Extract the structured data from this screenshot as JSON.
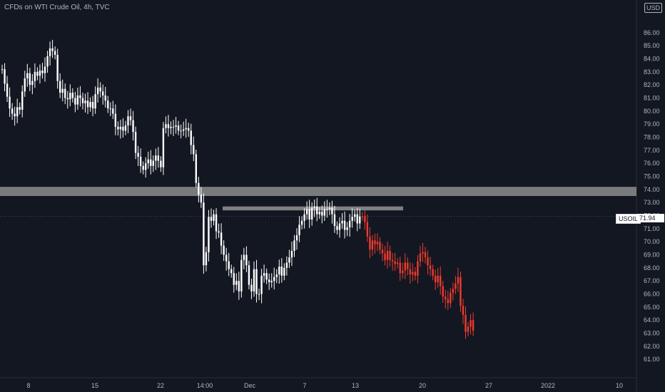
{
  "header": {
    "title": "CFDs on WTI Crude Oil, 4h, TVC",
    "currency": "USD"
  },
  "price_label": {
    "symbol": "USOIL",
    "value": "71.94"
  },
  "colors": {
    "background": "#131722",
    "up": "#ffffff",
    "down": "#ffffff",
    "projection": "#ef3b2c",
    "zone": "#8c8c8c",
    "text": "#b2b5be"
  },
  "chart_data": {
    "type": "candlestick",
    "title": "CFDs on WTI Crude Oil, 4h, TVC",
    "y_axis": {
      "ticks": [
        61.0,
        62.0,
        63.0,
        64.0,
        65.0,
        66.0,
        67.0,
        68.0,
        69.0,
        70.0,
        71.0,
        72.0,
        73.0,
        74.0,
        75.0,
        76.0,
        77.0,
        78.0,
        79.0,
        80.0,
        81.0,
        82.0,
        83.0,
        84.0,
        85.0,
        86.0
      ],
      "range": [
        60.3,
        87.3
      ],
      "position": "right"
    },
    "x_axis": {
      "tick_labels": [
        "8",
        "15",
        "22",
        "14:00",
        "Dec",
        "7",
        "13",
        "20",
        "27",
        "2022",
        "10"
      ]
    },
    "series": [
      {
        "kind": "historical",
        "color": "#ffffff",
        "closes": [
          83.2,
          82.1,
          81.1,
          80.2,
          79.8,
          79.6,
          80.3,
          80.1,
          81.5,
          82.5,
          82.9,
          82.0,
          82.3,
          83.0,
          82.7,
          83.1,
          82.9,
          83.4,
          84.2,
          84.8,
          84.6,
          84.3,
          82.3,
          81.4,
          81.7,
          81.0,
          80.9,
          81.4,
          81.0,
          80.5,
          81.2,
          81.0,
          80.6,
          80.8,
          80.3,
          80.7,
          80.2,
          81.3,
          81.8,
          81.5,
          81.2,
          80.8,
          80.2,
          80.2,
          79.8,
          78.8,
          78.6,
          78.8,
          78.5,
          78.9,
          79.6,
          79.3,
          78.4,
          76.8,
          76.5,
          75.8,
          75.5,
          76.0,
          76.3,
          75.8,
          76.2,
          76.6,
          76.2,
          75.7,
          78.7,
          79.0,
          78.7,
          78.8,
          78.8,
          78.9,
          78.5,
          78.5,
          78.6,
          78.7,
          78.5,
          77.4,
          76.7,
          74.5,
          73.6,
          73.0,
          68.2,
          69.2,
          71.9,
          71.6,
          72.1,
          70.8,
          70.7,
          69.7,
          69.0,
          68.5,
          67.9,
          67.6,
          66.7,
          67.0,
          66.2,
          68.6,
          69.0,
          68.2,
          66.7,
          66.2,
          67.9,
          66.0,
          66.0,
          67.4,
          67.6,
          67.1,
          66.9,
          67.0,
          67.3,
          67.5,
          68.1,
          67.4,
          68.0,
          68.4,
          68.8,
          69.3,
          70.1,
          70.5,
          71.3,
          71.6,
          72.1,
          72.5,
          71.7,
          72.6,
          72.7,
          72.1,
          72.3,
          72.0,
          72.5,
          72.5,
          72.6,
          72.1,
          71.2,
          70.9,
          71.4,
          71.6,
          70.9,
          71.1,
          71.6,
          71.9,
          72.1,
          71.4,
          71.94
        ]
      },
      {
        "kind": "projection",
        "color": "#ef3b2c",
        "closes": [
          71.94,
          71.5,
          70.4,
          69.4,
          70.1,
          69.8,
          70.0,
          69.4,
          69.1,
          68.6,
          69.3,
          68.6,
          68.5,
          68.3,
          68.4,
          67.6,
          67.8,
          68.4,
          67.9,
          67.5,
          67.7,
          67.4,
          68.5,
          69.1,
          69.2,
          68.8,
          68.2,
          67.9,
          67.4,
          66.9,
          67.4,
          66.6,
          65.8,
          65.6,
          65.3,
          66.1,
          66.4,
          66.8,
          67.3,
          65.1,
          64.4,
          63.1,
          63.5,
          64.0,
          63.2
        ]
      }
    ],
    "zones": [
      {
        "label": "",
        "low": 73.5,
        "high": 74.2,
        "extends": "right"
      },
      {
        "label": "",
        "low": 72.4,
        "high": 72.7,
        "extends": "segment"
      }
    ],
    "grid": false,
    "legend": "none"
  }
}
